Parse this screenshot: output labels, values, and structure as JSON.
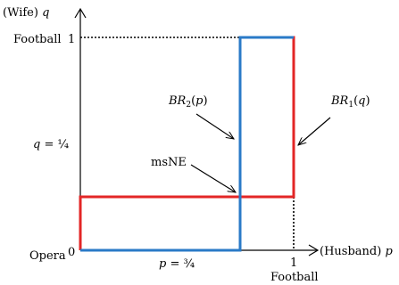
{
  "axes": {
    "y_axis_label_prefix": "(Wife) ",
    "y_axis_label_var": "q",
    "x_axis_label_prefix": "(Husband) ",
    "x_axis_label_var": "p",
    "origin_label": "0",
    "origin_strategy_label": "Opera",
    "y_top_tick_label": "1",
    "y_top_strategy_label": "Football",
    "x_right_tick_label": "1",
    "x_right_strategy_label": "Football"
  },
  "equilibrium": {
    "q_value_var": "q",
    "q_value_eq": " = ¼",
    "p_value_var": "p",
    "p_value_eq": " = ¾",
    "ne_label": "msNE"
  },
  "best_responses": {
    "br2": {
      "name": "BR",
      "sub": "2",
      "arg": "p",
      "color": "#2a7ac7"
    },
    "br1": {
      "name": "BR",
      "sub": "1",
      "arg": "q",
      "color": "#e32626"
    }
  }
}
